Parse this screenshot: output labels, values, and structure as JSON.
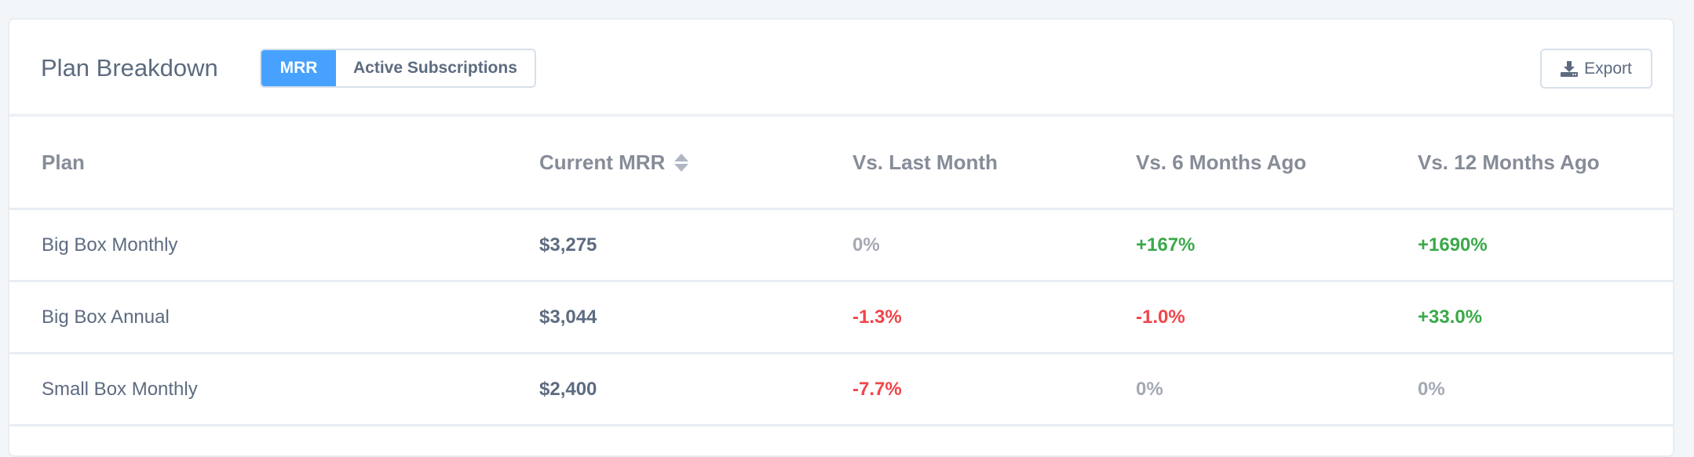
{
  "header": {
    "title": "Plan Breakdown",
    "toggle": [
      {
        "label": "MRR",
        "active": true
      },
      {
        "label": "Active Subscriptions",
        "active": false
      }
    ],
    "export_label": "Export",
    "export_icon": "download-icon"
  },
  "colors": {
    "accent": "#47a2ff",
    "positive": "#3aa94a",
    "negative": "#f0454b",
    "neutral": "#a3a9b3"
  },
  "table": {
    "columns": [
      "Plan",
      "Current MRR",
      "Vs. Last Month",
      "Vs. 6 Months Ago",
      "Vs. 12 Months Ago"
    ],
    "sort_column": "Current MRR",
    "rows": [
      {
        "plan": "Big Box Monthly",
        "mrr": "$3,275",
        "last_month": "0%",
        "six_months": "+167%",
        "twelve_months": "+1690%"
      },
      {
        "plan": "Big Box Annual",
        "mrr": "$3,044",
        "last_month": "-1.3%",
        "six_months": "-1.0%",
        "twelve_months": "+33.0%"
      },
      {
        "plan": "Small Box Monthly",
        "mrr": "$2,400",
        "last_month": "-7.7%",
        "six_months": "0%",
        "twelve_months": "0%"
      }
    ]
  }
}
